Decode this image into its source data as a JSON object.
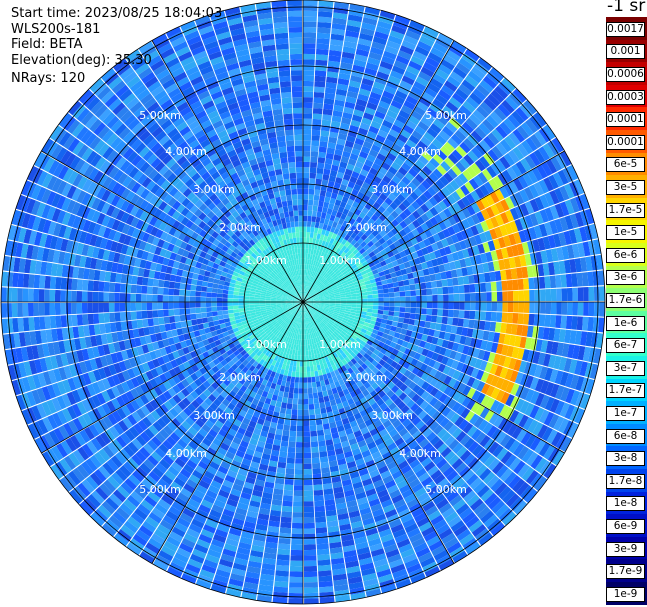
{
  "header": {
    "start_time": "Start time: 2023/08/25 18:04:03",
    "station": "WLS200s-181",
    "field": "Field: BETA",
    "elevation": "Elevation(deg): 35.30",
    "nrays": "NRays: 120"
  },
  "colorbar": {
    "units": "-1 sr",
    "labels": [
      "0.0017",
      "0.001",
      "0.0006",
      "0.0003",
      "0.00017",
      "0.0001",
      "6e-5",
      "3e-5",
      "1.7e-5",
      "1e-5",
      "6e-6",
      "3e-6",
      "1.7e-6",
      "1e-6",
      "6e-7",
      "3e-7",
      "1.7e-7",
      "1e-7",
      "6e-8",
      "3e-8",
      "1.7e-8",
      "1e-8",
      "6e-9",
      "3e-9",
      "1.7e-9",
      "1e-9"
    ],
    "colors": [
      "#7a0000",
      "#990000",
      "#c40000",
      "#e00000",
      "#ff2a00",
      "#ff5a00",
      "#ff8c00",
      "#ffb000",
      "#ffd500",
      "#f5f500",
      "#d9ff1a",
      "#b3ff4d",
      "#8cff73",
      "#5cffa0",
      "#33ffcc",
      "#1af2e6",
      "#00d4ff",
      "#00b0ff",
      "#008cff",
      "#0066ff",
      "#0044ee",
      "#0022dd",
      "#0010c8",
      "#0000aa",
      "#00008c",
      "#000066"
    ]
  },
  "range_labels": {
    "r1": "1.00km",
    "r2": "2.00km",
    "r3": "3.00km",
    "r4": "4.00km",
    "r5": "5.00km"
  },
  "display": {
    "nrays": 120,
    "ring_labels_km": [
      1,
      2,
      3,
      4,
      5
    ],
    "spoke_angles_deg": [
      0,
      30,
      60,
      90,
      120,
      150,
      180,
      210,
      240,
      270,
      300,
      330
    ]
  }
}
